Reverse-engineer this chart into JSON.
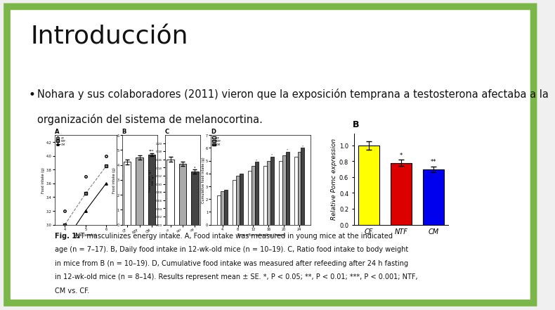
{
  "slide_bg": "#f0f0f0",
  "border_color": "#7ab648",
  "title": "Introducción",
  "bullet_text_1": "Nohara y sus colaboradores (2011) vieron que la exposición temprana a testosterona afectaba a la",
  "bullet_text_2": "organización del sistema de melanocortina.",
  "fig_caption_1": "Fig. 1. NT masculinizes energy intake. A, Food intake was measured in young mice at the indicated",
  "fig_caption_2": "age (n = 7–17). B, Daily food intake in 12-wk-old mice (n = 10–19). C, Ratio food intake to body weight",
  "fig_caption_3": "in mice from B (n = 10–19). D, Cumulative food intake was measured after refeeding after 24 h fasting",
  "fig_caption_4": "in 12-wk-old mice (n = 8–14). Results represent mean ± SE. *, P < 0.05; **, P < 0.01; ***, P < 0.001; NTF,",
  "fig_caption_5": "CM vs. CF.",
  "bar_B_label": "B",
  "bar_categories": [
    "CF",
    "NTF",
    "CM"
  ],
  "bar_values": [
    1.0,
    0.78,
    0.7
  ],
  "bar_errors": [
    0.055,
    0.04,
    0.035
  ],
  "bar_colors": [
    "#ffff00",
    "#dd0000",
    "#0000ee"
  ],
  "bar_ylabel": "Relative Pomc expression",
  "bar_yticks": [
    0.0,
    0.2,
    0.4,
    0.6,
    0.8,
    1.0
  ],
  "bar_annotations": [
    "",
    "*",
    "**"
  ],
  "title_fontsize": 26,
  "body_fontsize": 10.5,
  "caption_fontsize": 7.0,
  "background_color": "#ffffff"
}
